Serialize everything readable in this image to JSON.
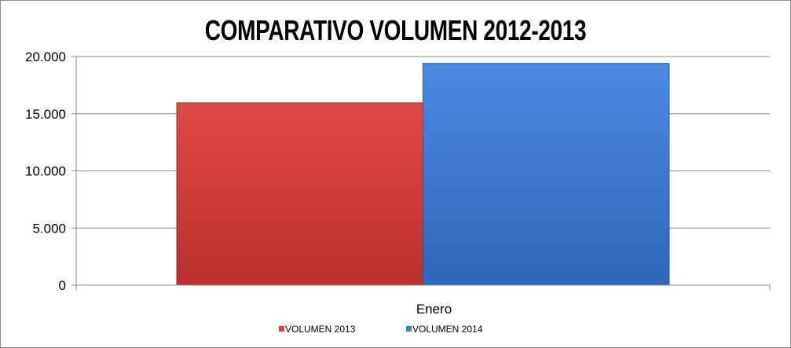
{
  "chart_data": {
    "type": "bar",
    "title": "COMPARATIVO VOLUMEN 2012-2013",
    "categories": [
      "Enero"
    ],
    "series": [
      {
        "name": "VOLUMEN 2013",
        "values": [
          15950
        ],
        "color": "#d0413e"
      },
      {
        "name": "VOLUMEN 2014",
        "values": [
          19400
        ],
        "color": "#3f7fd0"
      }
    ],
    "xlabel": "",
    "ylabel": "",
    "ylim": [
      0,
      20000
    ],
    "yticks": [
      0,
      5000,
      10000,
      15000,
      20000
    ],
    "ytick_labels": [
      "0",
      "5.000",
      "10.000",
      "15.000",
      "20.000"
    ],
    "grid": true,
    "legend": "bottom"
  }
}
